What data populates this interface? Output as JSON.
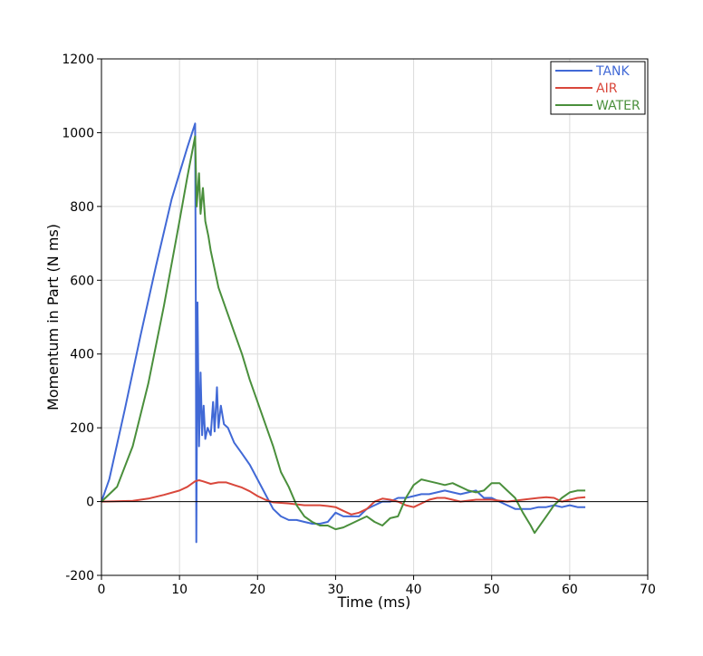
{
  "chart_data": {
    "type": "line",
    "title": "",
    "xlabel": "Time (ms)",
    "ylabel": "Momentum in Part (N ms)",
    "xlim": [
      0,
      70
    ],
    "ylim": [
      -200,
      1200
    ],
    "xticks": [
      0,
      10,
      20,
      30,
      40,
      50,
      60,
      70
    ],
    "yticks": [
      -200,
      0,
      200,
      400,
      600,
      800,
      1000,
      1200
    ],
    "grid": true,
    "legend_position": "top-right",
    "series": [
      {
        "name": "TANK",
        "color": "#4169d6",
        "x": [
          0,
          1,
          3,
          5,
          7,
          9,
          11,
          12,
          12.1,
          12.15,
          12.3,
          12.5,
          12.7,
          12.9,
          13.1,
          13.3,
          13.6,
          14,
          14.3,
          14.5,
          14.8,
          15,
          15.3,
          15.7,
          16.2,
          17,
          18,
          19,
          20,
          21,
          22,
          23,
          24,
          25,
          26,
          27,
          28,
          29,
          30,
          31,
          32,
          33,
          34,
          35,
          36,
          37,
          38,
          39,
          40,
          41,
          42,
          43,
          44,
          45,
          46,
          47,
          48,
          49,
          50,
          51,
          52,
          53,
          54,
          55,
          56,
          57,
          58,
          59,
          60,
          61,
          62
        ],
        "y": [
          0,
          60,
          250,
          450,
          640,
          820,
          960,
          1025,
          500,
          -110,
          540,
          150,
          350,
          180,
          260,
          170,
          200,
          180,
          270,
          190,
          310,
          200,
          260,
          210,
          200,
          160,
          130,
          100,
          60,
          20,
          -20,
          -40,
          -50,
          -50,
          -55,
          -60,
          -60,
          -55,
          -30,
          -40,
          -40,
          -40,
          -20,
          -10,
          0,
          0,
          10,
          10,
          15,
          20,
          20,
          25,
          30,
          25,
          20,
          25,
          30,
          10,
          10,
          0,
          -10,
          -20,
          -20,
          -20,
          -15,
          -15,
          -10,
          -15,
          -10,
          -15,
          -15
        ]
      },
      {
        "name": "AIR",
        "color": "#d9473b",
        "x": [
          0,
          4,
          6,
          8,
          10,
          11,
          12,
          12.5,
          13,
          14,
          15,
          16,
          17,
          18,
          19,
          20,
          21,
          22,
          24,
          26,
          28,
          29,
          30,
          31,
          32,
          33,
          34,
          35,
          36,
          37,
          38,
          39,
          40,
          41,
          42,
          43,
          44,
          45,
          46,
          48,
          50,
          52,
          54,
          56,
          57,
          58,
          59,
          60,
          61,
          62
        ],
        "y": [
          0,
          2,
          8,
          18,
          30,
          40,
          55,
          58,
          55,
          48,
          52,
          52,
          45,
          38,
          28,
          15,
          5,
          -2,
          -5,
          -10,
          -10,
          -12,
          -15,
          -25,
          -35,
          -30,
          -20,
          0,
          8,
          5,
          0,
          -10,
          -15,
          -5,
          5,
          10,
          10,
          5,
          0,
          5,
          5,
          0,
          5,
          10,
          12,
          10,
          0,
          5,
          10,
          12
        ]
      },
      {
        "name": "WATER",
        "color": "#4a8f3c",
        "x": [
          0,
          2,
          4,
          6,
          8,
          10,
          11,
          12,
          12.2,
          12.5,
          12.7,
          13,
          13.3,
          13.7,
          14,
          14.5,
          15,
          16,
          17,
          18,
          19,
          20,
          21,
          22,
          23,
          24,
          25,
          26,
          27,
          28,
          29,
          30,
          31,
          32,
          33,
          34,
          35,
          36,
          37,
          38,
          39,
          40,
          41,
          42,
          43,
          44,
          45,
          46,
          47,
          48,
          49,
          50,
          51,
          52,
          53,
          54,
          55,
          55.5,
          56,
          57,
          58,
          59,
          60,
          61,
          62
        ],
        "y": [
          0,
          40,
          150,
          320,
          530,
          760,
          880,
          990,
          800,
          890,
          780,
          850,
          760,
          720,
          680,
          630,
          580,
          520,
          460,
          400,
          330,
          270,
          210,
          150,
          80,
          40,
          -10,
          -40,
          -55,
          -65,
          -65,
          -75,
          -70,
          -60,
          -50,
          -40,
          -55,
          -65,
          -45,
          -40,
          10,
          45,
          60,
          55,
          50,
          45,
          50,
          40,
          30,
          25,
          30,
          50,
          50,
          30,
          10,
          -30,
          -65,
          -85,
          -70,
          -40,
          -10,
          10,
          25,
          30,
          30
        ]
      }
    ]
  }
}
